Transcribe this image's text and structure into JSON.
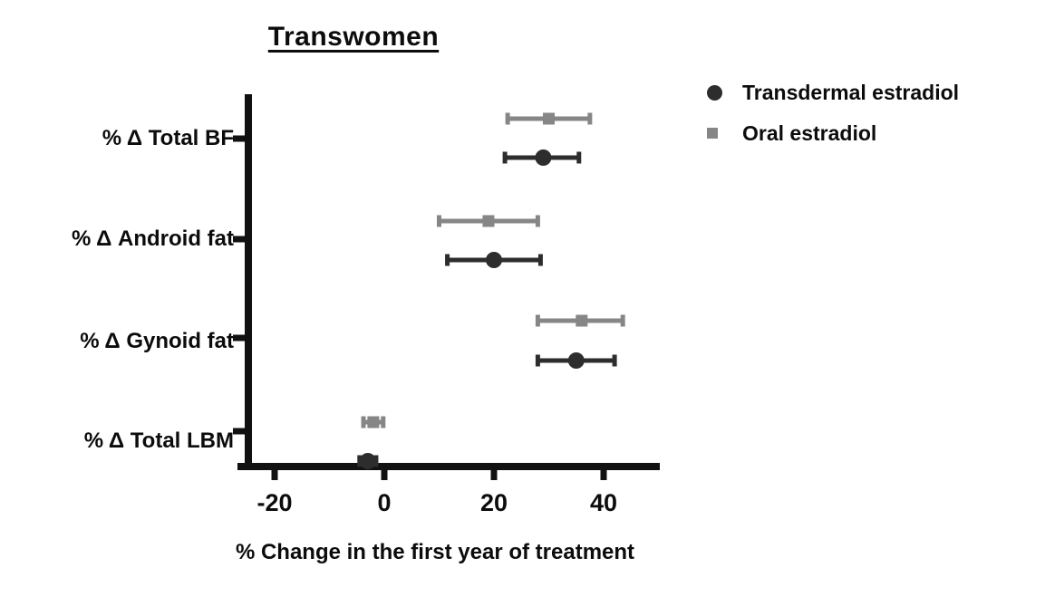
{
  "chart_data": {
    "type": "scatter",
    "subtype": "forest-plot-with-error-bars",
    "title": "Transwomen",
    "xlabel": "% Change in the first year of treatment",
    "ylabel": "",
    "categories": [
      "% Δ Total BF",
      "% Δ Android fat",
      "% Δ Gynoid fat",
      "% Δ Total LBM"
    ],
    "x_ticks": [
      -20,
      0,
      20,
      40
    ],
    "x_tick_labels": [
      "-20",
      "0",
      "20",
      "40"
    ],
    "xlim": [
      -25,
      50
    ],
    "grid": "off",
    "legend_position": "top-right",
    "axis_color": "#111111",
    "series": [
      {
        "name": "Transdermal estradiol",
        "marker": "circle",
        "color": "#2d2d2d",
        "points": [
          {
            "category": "% Δ Total BF",
            "mean": 29,
            "ci_low": 22,
            "ci_high": 35.5
          },
          {
            "category": "% Δ Android fat",
            "mean": 20,
            "ci_low": 11.5,
            "ci_high": 28.5
          },
          {
            "category": "% Δ Gynoid fat",
            "mean": 35,
            "ci_low": 28,
            "ci_high": 42
          },
          {
            "category": "% Δ Total LBM",
            "mean": -3,
            "ci_low": -4.5,
            "ci_high": -1.5
          }
        ]
      },
      {
        "name": "Oral estradiol",
        "marker": "square",
        "color": "#868686",
        "points": [
          {
            "category": "% Δ Total BF",
            "mean": 30,
            "ci_low": 22.5,
            "ci_high": 37.5
          },
          {
            "category": "% Δ Android fat",
            "mean": 19,
            "ci_low": 10,
            "ci_high": 28
          },
          {
            "category": "% Δ Gynoid fat",
            "mean": 36,
            "ci_low": 28,
            "ci_high": 43.5
          },
          {
            "category": "% Δ Total LBM",
            "mean": -2,
            "ci_low": -3.8,
            "ci_high": -0.2
          }
        ]
      }
    ]
  }
}
